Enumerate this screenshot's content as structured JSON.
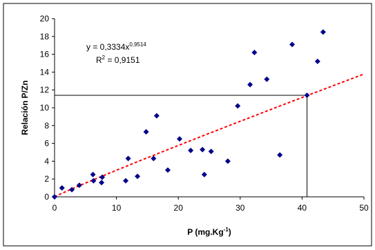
{
  "chart_data": {
    "type": "scatter",
    "title": "",
    "xlabel": "P (mg.Kg",
    "xlabel_sup": "-1",
    "xlabel_suffix": ")",
    "ylabel": "Relación P/Zn",
    "xlim": [
      0,
      50
    ],
    "ylim": [
      0,
      20
    ],
    "xticks": [
      "0",
      "10",
      "20",
      "30",
      "40",
      "50"
    ],
    "yticks": [
      "0",
      "2",
      "4",
      "6",
      "8",
      "10",
      "12",
      "14",
      "16",
      "18",
      "20"
    ],
    "grid": false,
    "legend": "none",
    "marker_color": "#00008B",
    "trendline": {
      "type": "power",
      "coefficient": 0.3334,
      "exponent": 0.9514,
      "color": "#FF0000",
      "style": "dashed",
      "equation_base": "y = 0,3334x",
      "equation_exp": "0,9514",
      "r2_base": "R",
      "r2_sup": "2",
      "r2_value": " = 0,9151"
    },
    "reference_lines": {
      "x": 40.8,
      "y": 11.4
    },
    "points": [
      {
        "x": 0,
        "y": 0
      },
      {
        "x": 1.2,
        "y": 1.0
      },
      {
        "x": 2.8,
        "y": 0.8
      },
      {
        "x": 4.0,
        "y": 1.3
      },
      {
        "x": 6.2,
        "y": 2.5
      },
      {
        "x": 6.3,
        "y": 1.8
      },
      {
        "x": 7.6,
        "y": 1.6
      },
      {
        "x": 7.7,
        "y": 2.2
      },
      {
        "x": 11.5,
        "y": 1.8
      },
      {
        "x": 11.9,
        "y": 4.3
      },
      {
        "x": 13.4,
        "y": 2.3
      },
      {
        "x": 14.8,
        "y": 7.3
      },
      {
        "x": 16.0,
        "y": 4.3
      },
      {
        "x": 16.5,
        "y": 9.1
      },
      {
        "x": 18.3,
        "y": 3.0
      },
      {
        "x": 20.2,
        "y": 6.5
      },
      {
        "x": 22.0,
        "y": 5.2
      },
      {
        "x": 23.9,
        "y": 5.3
      },
      {
        "x": 24.2,
        "y": 2.5
      },
      {
        "x": 25.3,
        "y": 5.1
      },
      {
        "x": 28.0,
        "y": 4.0
      },
      {
        "x": 29.6,
        "y": 10.2
      },
      {
        "x": 31.6,
        "y": 12.6
      },
      {
        "x": 32.3,
        "y": 16.2
      },
      {
        "x": 34.3,
        "y": 13.2
      },
      {
        "x": 36.4,
        "y": 4.7
      },
      {
        "x": 38.4,
        "y": 17.1
      },
      {
        "x": 40.8,
        "y": 11.4
      },
      {
        "x": 42.5,
        "y": 15.2
      },
      {
        "x": 43.4,
        "y": 18.5
      }
    ]
  }
}
